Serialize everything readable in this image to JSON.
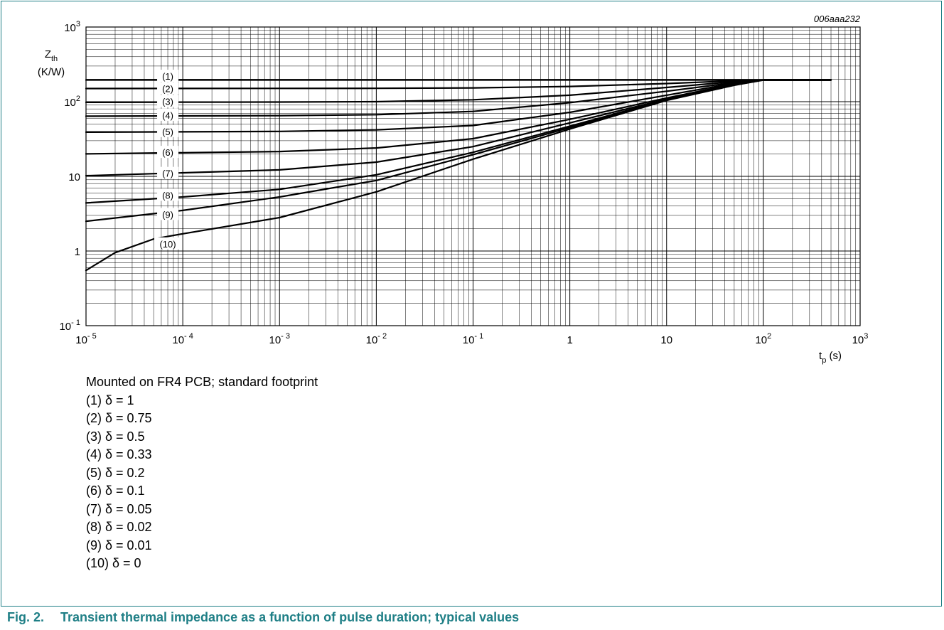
{
  "figure": {
    "code": "006aaa232",
    "number": "Fig. 2.",
    "caption": "Transient thermal impedance as a function of pulse duration; typical values",
    "condition": "Mounted on FR4 PCB; standard footprint",
    "legend": [
      "(1) δ = 1",
      "(2) δ = 0.75",
      "(3) δ = 0.5",
      "(4) δ = 0.33",
      "(5) δ = 0.2",
      "(6) δ = 0.1",
      "(7) δ = 0.05",
      "(8) δ = 0.02",
      "(9) δ = 0.01",
      "(10) δ = 0"
    ],
    "colors": {
      "accent": "#1f7f86",
      "line": "#000000",
      "grid": "#000000"
    }
  },
  "chart_data": {
    "type": "line",
    "xscale": "log",
    "yscale": "log",
    "xlim": [
      1e-05,
      1000
    ],
    "ylim": [
      0.1,
      1000
    ],
    "grid": true,
    "xlabel": {
      "main": "t",
      "sub": "p",
      "unit": "(s)"
    },
    "ylabel": {
      "main": "Z",
      "sub": "th",
      "unit": "(K/W)"
    },
    "xticks": [
      {
        "value": 1e-05,
        "base": "10",
        "exp": "- 5"
      },
      {
        "value": 0.0001,
        "base": "10",
        "exp": "- 4"
      },
      {
        "value": 0.001,
        "base": "10",
        "exp": "- 3"
      },
      {
        "value": 0.01,
        "base": "10",
        "exp": "- 2"
      },
      {
        "value": 0.1,
        "base": "10",
        "exp": "- 1"
      },
      {
        "value": 1,
        "base": "1",
        "exp": ""
      },
      {
        "value": 10,
        "base": "10",
        "exp": ""
      },
      {
        "value": 100,
        "base": "10",
        "exp": "2"
      },
      {
        "value": 1000,
        "base": "10",
        "exp": "3"
      }
    ],
    "yticks": [
      {
        "value": 0.1,
        "base": "10",
        "exp": "- 1"
      },
      {
        "value": 1,
        "base": "1",
        "exp": ""
      },
      {
        "value": 10,
        "base": "10",
        "exp": ""
      },
      {
        "value": 100,
        "base": "10",
        "exp": "2"
      },
      {
        "value": 1000,
        "base": "10",
        "exp": "3"
      }
    ],
    "series": [
      {
        "label": "(1)",
        "label_at": [
          7e-05,
          220
        ],
        "points": [
          [
            1e-05,
            195
          ],
          [
            500,
            195
          ]
        ]
      },
      {
        "label": "(2)",
        "label_at": [
          7e-05,
          150
        ],
        "points": [
          [
            1e-05,
            150
          ],
          [
            0.01,
            151
          ],
          [
            0.1,
            153
          ],
          [
            1,
            160
          ],
          [
            10,
            175
          ],
          [
            50,
            190
          ],
          [
            100,
            195
          ],
          [
            500,
            195
          ]
        ]
      },
      {
        "label": "(3)",
        "label_at": [
          7e-05,
          101
        ],
        "points": [
          [
            1e-05,
            98
          ],
          [
            0.001,
            99
          ],
          [
            0.01,
            100
          ],
          [
            0.1,
            106
          ],
          [
            1,
            122
          ],
          [
            10,
            155
          ],
          [
            50,
            185
          ],
          [
            100,
            195
          ],
          [
            500,
            195
          ]
        ]
      },
      {
        "label": "(4)",
        "label_at": [
          7e-05,
          66
        ],
        "points": [
          [
            1e-05,
            64
          ],
          [
            0.001,
            65
          ],
          [
            0.01,
            67
          ],
          [
            0.1,
            74
          ],
          [
            1,
            97
          ],
          [
            10,
            138
          ],
          [
            50,
            180
          ],
          [
            100,
            195
          ],
          [
            500,
            195
          ]
        ]
      },
      {
        "label": "(5)",
        "label_at": [
          7e-05,
          40
        ],
        "points": [
          [
            1e-05,
            39
          ],
          [
            0.001,
            40
          ],
          [
            0.01,
            42
          ],
          [
            0.1,
            48
          ],
          [
            1,
            72
          ],
          [
            10,
            122
          ],
          [
            50,
            176
          ],
          [
            100,
            195
          ],
          [
            500,
            195
          ]
        ]
      },
      {
        "label": "(6)",
        "label_at": [
          7e-05,
          21
        ],
        "points": [
          [
            1e-05,
            20
          ],
          [
            0.001,
            21.5
          ],
          [
            0.01,
            24
          ],
          [
            0.1,
            32
          ],
          [
            1,
            58
          ],
          [
            10,
            112
          ],
          [
            50,
            172
          ],
          [
            100,
            195
          ],
          [
            500,
            195
          ]
        ]
      },
      {
        "label": "(7)",
        "label_at": [
          7e-05,
          11
        ],
        "points": [
          [
            1e-05,
            10.2
          ],
          [
            0.001,
            12.2
          ],
          [
            0.01,
            15.5
          ],
          [
            0.1,
            25
          ],
          [
            1,
            52
          ],
          [
            10,
            108
          ],
          [
            50,
            170
          ],
          [
            100,
            195
          ],
          [
            500,
            195
          ]
        ]
      },
      {
        "label": "(8)",
        "label_at": [
          7e-05,
          5.6
        ],
        "points": [
          [
            1e-05,
            4.4
          ],
          [
            0.0001,
            5.3
          ],
          [
            0.001,
            6.7
          ],
          [
            0.01,
            10.5
          ],
          [
            0.1,
            21
          ],
          [
            1,
            47
          ],
          [
            10,
            106
          ],
          [
            50,
            168
          ],
          [
            100,
            195
          ],
          [
            500,
            195
          ]
        ]
      },
      {
        "label": "(9)",
        "label_at": [
          7e-05,
          3.1
        ],
        "points": [
          [
            1e-05,
            2.5
          ],
          [
            0.0001,
            3.5
          ],
          [
            0.001,
            5.3
          ],
          [
            0.01,
            8.8
          ],
          [
            0.1,
            19.5
          ],
          [
            1,
            45
          ],
          [
            10,
            105
          ],
          [
            50,
            167
          ],
          [
            100,
            195
          ],
          [
            500,
            195
          ]
        ]
      },
      {
        "label": "(10)",
        "label_at": [
          7e-05,
          1.25
        ],
        "points": [
          [
            1e-05,
            0.55
          ],
          [
            2e-05,
            0.95
          ],
          [
            5e-05,
            1.45
          ],
          [
            0.0001,
            1.7
          ],
          [
            0.001,
            2.8
          ],
          [
            0.01,
            6.2
          ],
          [
            0.1,
            17
          ],
          [
            1,
            43
          ],
          [
            10,
            104
          ],
          [
            50,
            166
          ],
          [
            100,
            195
          ],
          [
            500,
            195
          ]
        ]
      }
    ]
  }
}
